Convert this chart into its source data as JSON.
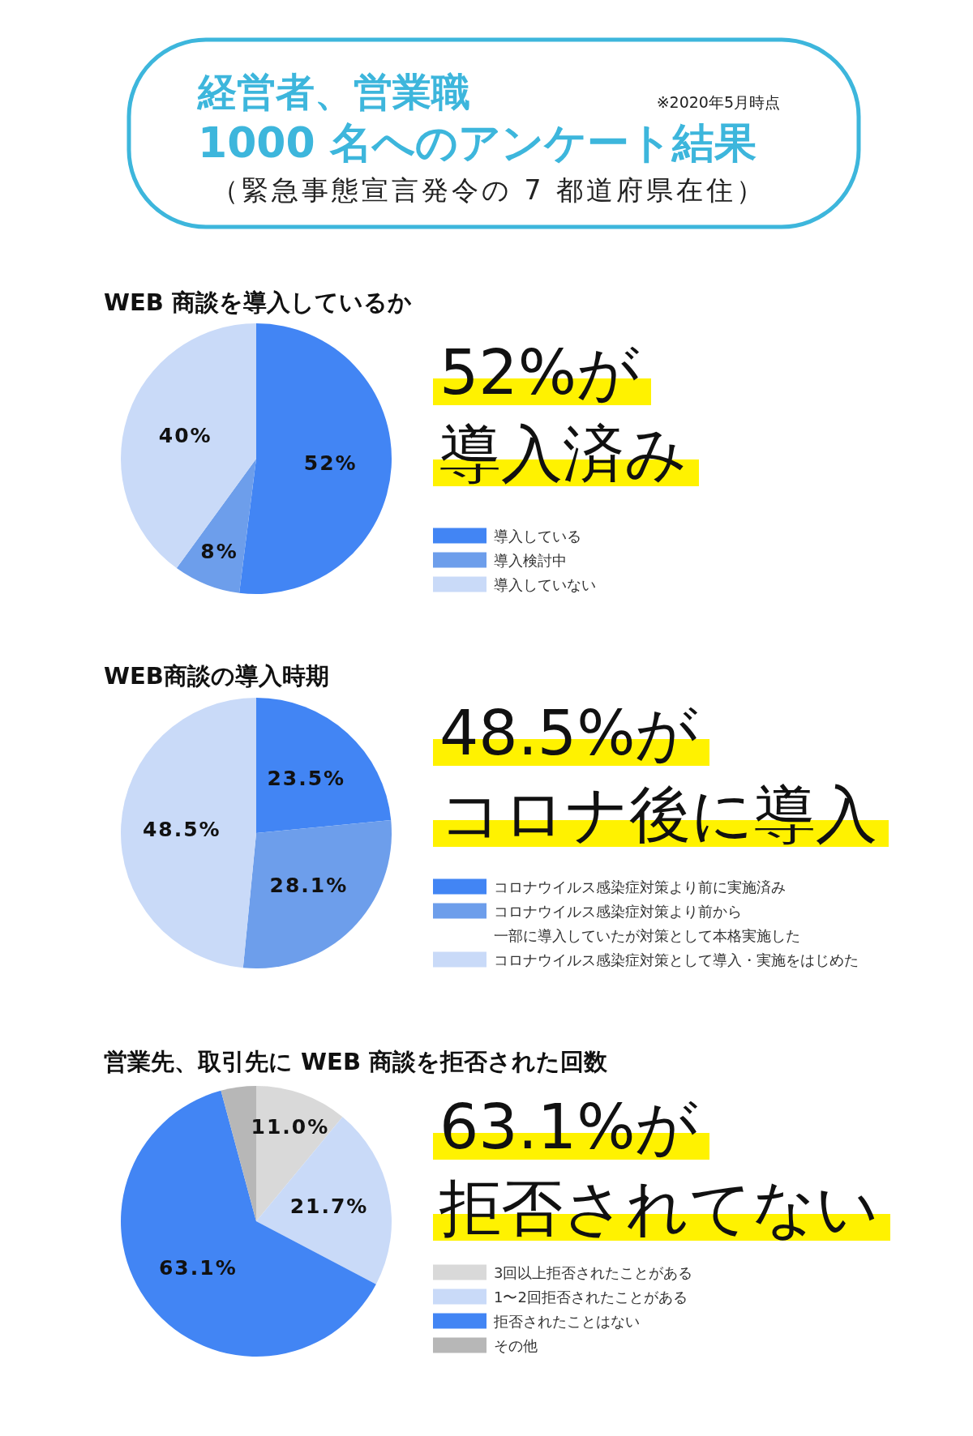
{
  "chart_data": [
    {
      "type": "other",
      "title": "経営者、営業職",
      "subtitle": "1000 名へのアンケート結果",
      "annotations": [
        "※2020年5月時点",
        "（緊急事態宣言発令の 7 都道府県在住）"
      ]
    },
    {
      "type": "pie",
      "title": "WEB 商談を導入しているか",
      "categories": [
        "導入している",
        "導入検討中",
        "導入していない"
      ],
      "values": [
        52,
        8,
        40
      ],
      "colors": [
        "#4285f4",
        "#6d9eeb",
        "#c9daf8"
      ],
      "value_labels": [
        "52%",
        "8%",
        "40%"
      ],
      "legend": "right",
      "annotations": [
        "52%が",
        "導入済み"
      ]
    },
    {
      "type": "pie",
      "title": "WEB商談の導入時期",
      "categories": [
        "コロナウイルス感染症対策より前に実施済み",
        "コロナウイルス感染症対策より前から一部に導入していたが対策として本格実施した",
        "コロナウイルス感染症対策として導入・実施をはじめた"
      ],
      "values": [
        23.5,
        28.1,
        48.5
      ],
      "colors": [
        "#4285f4",
        "#6d9eeb",
        "#c9daf8"
      ],
      "value_labels": [
        "23.5%",
        "28.1%",
        "48.5%"
      ],
      "legend": "right",
      "annotations": [
        "48.5%が",
        "コロナ後に導入"
      ]
    },
    {
      "type": "pie",
      "title": "営業先、取引先に WEB 商談を拒否された回数",
      "categories": [
        "3回以上拒否されたことがある",
        "1〜2回拒否されたことがある",
        "拒否されたことはない",
        "その他"
      ],
      "values": [
        11.0,
        21.7,
        63.1,
        4.2
      ],
      "colors": [
        "#d9d9d9",
        "#c9daf8",
        "#4285f4",
        "#b7b7b7"
      ],
      "value_labels": [
        "11.0%",
        "21.7%",
        "63.1%",
        null
      ],
      "legend": "right",
      "annotations": [
        "63.1%が",
        "拒否されてない"
      ]
    }
  ]
}
